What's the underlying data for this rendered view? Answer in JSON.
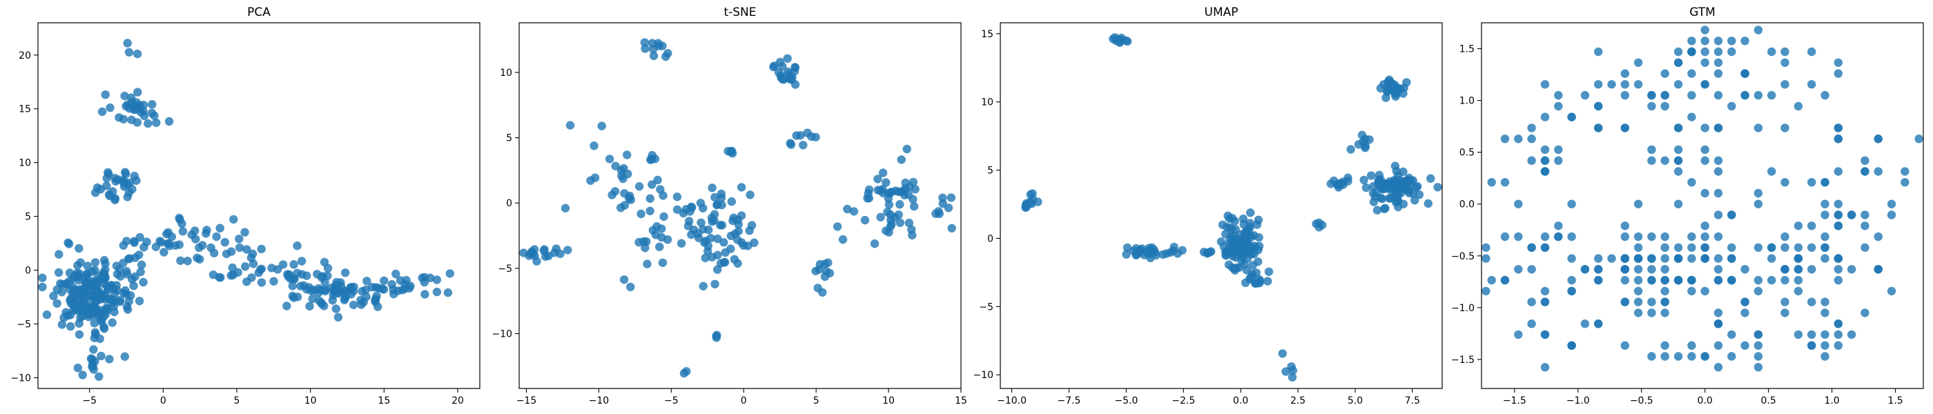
{
  "chart_data": [
    {
      "type": "scatter",
      "title": "PCA",
      "xlabel": "",
      "ylabel": "",
      "xlim": [
        -8.5,
        21.5
      ],
      "ylim": [
        -11,
        23
      ],
      "xticks": [
        -5,
        0,
        5,
        10,
        15,
        20
      ],
      "xtick_labels": [
        "−5",
        "0",
        "5",
        "10",
        "15",
        "20"
      ],
      "yticks": [
        -10,
        -5,
        0,
        5,
        10,
        15,
        20
      ],
      "ytick_labels": [
        "−10",
        "−5",
        "0",
        "5",
        "10",
        "15",
        "20"
      ],
      "grid": false,
      "color": "#1f77b4",
      "clusters": [
        {
          "cx": -5.0,
          "cy": -2.5,
          "sx": 1.3,
          "sy": 1.5,
          "n": 160
        },
        {
          "cx": -3.5,
          "cy": -0.5,
          "sx": 1.5,
          "sy": 2.0,
          "n": 50
        },
        {
          "cx": -3.0,
          "cy": 8.0,
          "sx": 0.7,
          "sy": 0.8,
          "n": 28
        },
        {
          "cx": -2.0,
          "cy": 15.0,
          "sx": 1.2,
          "sy": 0.8,
          "n": 30
        },
        {
          "cx": -2.2,
          "cy": 20.5,
          "sx": 0.3,
          "sy": 0.6,
          "n": 3
        },
        {
          "cx": 1.5,
          "cy": 2.5,
          "sx": 2.0,
          "sy": 1.2,
          "n": 45
        },
        {
          "cx": 7.5,
          "cy": 0.0,
          "sx": 2.0,
          "sy": 1.0,
          "n": 35
        },
        {
          "cx": 12.0,
          "cy": -2.0,
          "sx": 1.5,
          "sy": 0.8,
          "n": 70
        },
        {
          "cx": 16.5,
          "cy": -1.5,
          "sx": 2.0,
          "sy": 0.6,
          "n": 25
        },
        {
          "cx": -4.5,
          "cy": -8.5,
          "sx": 0.8,
          "sy": 0.6,
          "n": 14
        }
      ]
    },
    {
      "type": "scatter",
      "title": "t-SNE",
      "xlabel": "",
      "ylabel": "",
      "xlim": [
        -15.5,
        15.0
      ],
      "ylim": [
        -14.2,
        13.8
      ],
      "xticks": [
        -15,
        -10,
        -5,
        0,
        5,
        10,
        15
      ],
      "xtick_labels": [
        "−15",
        "−10",
        "−5",
        "0",
        "5",
        "10",
        "15"
      ],
      "yticks": [
        -10,
        -5,
        0,
        5,
        10
      ],
      "ytick_labels": [
        "−10",
        "−5",
        "0",
        "5",
        "10"
      ],
      "grid": false,
      "color": "#1f77b4",
      "clusters": [
        {
          "cx": -13.5,
          "cy": -3.9,
          "sx": 0.7,
          "sy": 0.25,
          "n": 16
        },
        {
          "cx": -8.5,
          "cy": 2.2,
          "sx": 1.5,
          "sy": 1.3,
          "n": 30
        },
        {
          "cx": -7.0,
          "cy": -3.0,
          "sx": 0.8,
          "sy": 2.0,
          "n": 12
        },
        {
          "cx": -6.0,
          "cy": 11.8,
          "sx": 0.6,
          "sy": 0.4,
          "n": 10
        },
        {
          "cx": -3.0,
          "cy": -1.8,
          "sx": 1.8,
          "sy": 1.5,
          "n": 60
        },
        {
          "cx": -1.0,
          "cy": -2.5,
          "sx": 0.8,
          "sy": 1.8,
          "n": 18
        },
        {
          "cx": -1.0,
          "cy": 3.9,
          "sx": 0.15,
          "sy": 0.1,
          "n": 4
        },
        {
          "cx": 3.0,
          "cy": 10.2,
          "sx": 0.6,
          "sy": 0.7,
          "n": 20
        },
        {
          "cx": 4.2,
          "cy": 4.8,
          "sx": 0.4,
          "sy": 0.4,
          "n": 8
        },
        {
          "cx": 5.5,
          "cy": -5.5,
          "sx": 0.3,
          "sy": 0.8,
          "n": 10
        },
        {
          "cx": 10.5,
          "cy": 0.0,
          "sx": 1.5,
          "sy": 1.5,
          "n": 60
        },
        {
          "cx": -1.8,
          "cy": -10.4,
          "sx": 0.1,
          "sy": 0.15,
          "n": 3
        },
        {
          "cx": -4.0,
          "cy": -13.0,
          "sx": 0.1,
          "sy": 0.1,
          "n": 2
        }
      ]
    },
    {
      "type": "scatter",
      "title": "UMAP",
      "xlabel": "",
      "ylabel": "",
      "xlim": [
        -10.5,
        8.8
      ],
      "ylim": [
        -11.0,
        15.8
      ],
      "xticks": [
        -10.0,
        -7.5,
        -5.0,
        -2.5,
        0.0,
        2.5,
        5.0,
        7.5
      ],
      "xtick_labels": [
        "−10.0",
        "−7.5",
        "−5.0",
        "−2.5",
        "0.0",
        "2.5",
        "5.0",
        "7.5"
      ],
      "yticks": [
        -10,
        -5,
        0,
        5,
        10,
        15
      ],
      "ytick_labels": [
        "−10",
        "−5",
        "0",
        "5",
        "10",
        "15"
      ],
      "grid": false,
      "color": "#1f77b4",
      "clusters": [
        {
          "cx": -9.2,
          "cy": 2.6,
          "sx": 0.25,
          "sy": 0.25,
          "n": 12
        },
        {
          "cx": -5.3,
          "cy": 14.5,
          "sx": 0.2,
          "sy": 0.1,
          "n": 12
        },
        {
          "cx": -4.0,
          "cy": -1.0,
          "sx": 0.6,
          "sy": 0.2,
          "n": 30
        },
        {
          "cx": -1.5,
          "cy": -1.1,
          "sx": 0.15,
          "sy": 0.1,
          "n": 5
        },
        {
          "cx": 0.0,
          "cy": -0.5,
          "sx": 0.35,
          "sy": 0.8,
          "n": 110
        },
        {
          "cx": 0.8,
          "cy": -3.0,
          "sx": 0.4,
          "sy": 0.3,
          "n": 14
        },
        {
          "cx": 2.2,
          "cy": -9.5,
          "sx": 0.25,
          "sy": 0.5,
          "n": 5
        },
        {
          "cx": 3.5,
          "cy": 1.0,
          "sx": 0.1,
          "sy": 0.1,
          "n": 4
        },
        {
          "cx": 4.2,
          "cy": 4.0,
          "sx": 0.4,
          "sy": 0.2,
          "n": 12
        },
        {
          "cx": 5.2,
          "cy": 7.0,
          "sx": 0.2,
          "sy": 0.3,
          "n": 8
        },
        {
          "cx": 6.6,
          "cy": 11.0,
          "sx": 0.25,
          "sy": 0.35,
          "n": 25
        },
        {
          "cx": 6.8,
          "cy": 3.8,
          "sx": 0.6,
          "sy": 0.6,
          "n": 90
        }
      ]
    },
    {
      "type": "scatter",
      "title": "GTM",
      "xlabel": "",
      "ylabel": "",
      "xlim": [
        -1.76,
        1.72
      ],
      "ylim": [
        -1.78,
        1.75
      ],
      "xticks": [
        -1.5,
        -1.0,
        -0.5,
        0.0,
        0.5,
        1.0,
        1.5
      ],
      "xtick_labels": [
        "−1.5",
        "−1.0",
        "−0.5",
        "0.0",
        "0.5",
        "1.0",
        "1.5"
      ],
      "yticks": [
        -1.5,
        -1.0,
        -0.5,
        0.0,
        0.5,
        1.0,
        1.5
      ],
      "ytick_labels": [
        "−1.5",
        "−1.0",
        "−0.5",
        "0.0",
        "0.5",
        "1.0",
        "1.5"
      ],
      "grid": false,
      "color": "#1f77b4",
      "grid_step": 0.105,
      "clusters": [
        {
          "cx": -0.6,
          "cy": 1.0,
          "sx": 0.35,
          "sy": 0.2,
          "n": 30
        },
        {
          "cx": 0.0,
          "cy": 1.45,
          "sx": 0.4,
          "sy": 0.12,
          "n": 25
        },
        {
          "cx": 0.5,
          "cy": 1.1,
          "sx": 0.35,
          "sy": 0.2,
          "n": 25
        },
        {
          "cx": -1.3,
          "cy": 0.45,
          "sx": 0.2,
          "sy": 0.15,
          "n": 15
        },
        {
          "cx": -0.3,
          "cy": 0.3,
          "sx": 0.4,
          "sy": 0.3,
          "n": 20
        },
        {
          "cx": 1.2,
          "cy": 0.2,
          "sx": 0.25,
          "sy": 0.3,
          "n": 25
        },
        {
          "cx": -1.3,
          "cy": -0.6,
          "sx": 0.25,
          "sy": 0.25,
          "n": 30
        },
        {
          "cx": -0.35,
          "cy": -0.65,
          "sx": 0.35,
          "sy": 0.2,
          "n": 60
        },
        {
          "cx": 0.3,
          "cy": -0.6,
          "sx": 0.3,
          "sy": 0.3,
          "n": 40
        },
        {
          "cx": 1.0,
          "cy": -0.6,
          "sx": 0.3,
          "sy": 0.35,
          "n": 40
        },
        {
          "cx": -0.9,
          "cy": -1.3,
          "sx": 0.3,
          "sy": 0.15,
          "n": 15
        },
        {
          "cx": 0.3,
          "cy": -1.4,
          "sx": 0.3,
          "sy": 0.12,
          "n": 18
        },
        {
          "cx": 1.0,
          "cy": -1.25,
          "sx": 0.2,
          "sy": 0.15,
          "n": 10
        }
      ]
    }
  ]
}
